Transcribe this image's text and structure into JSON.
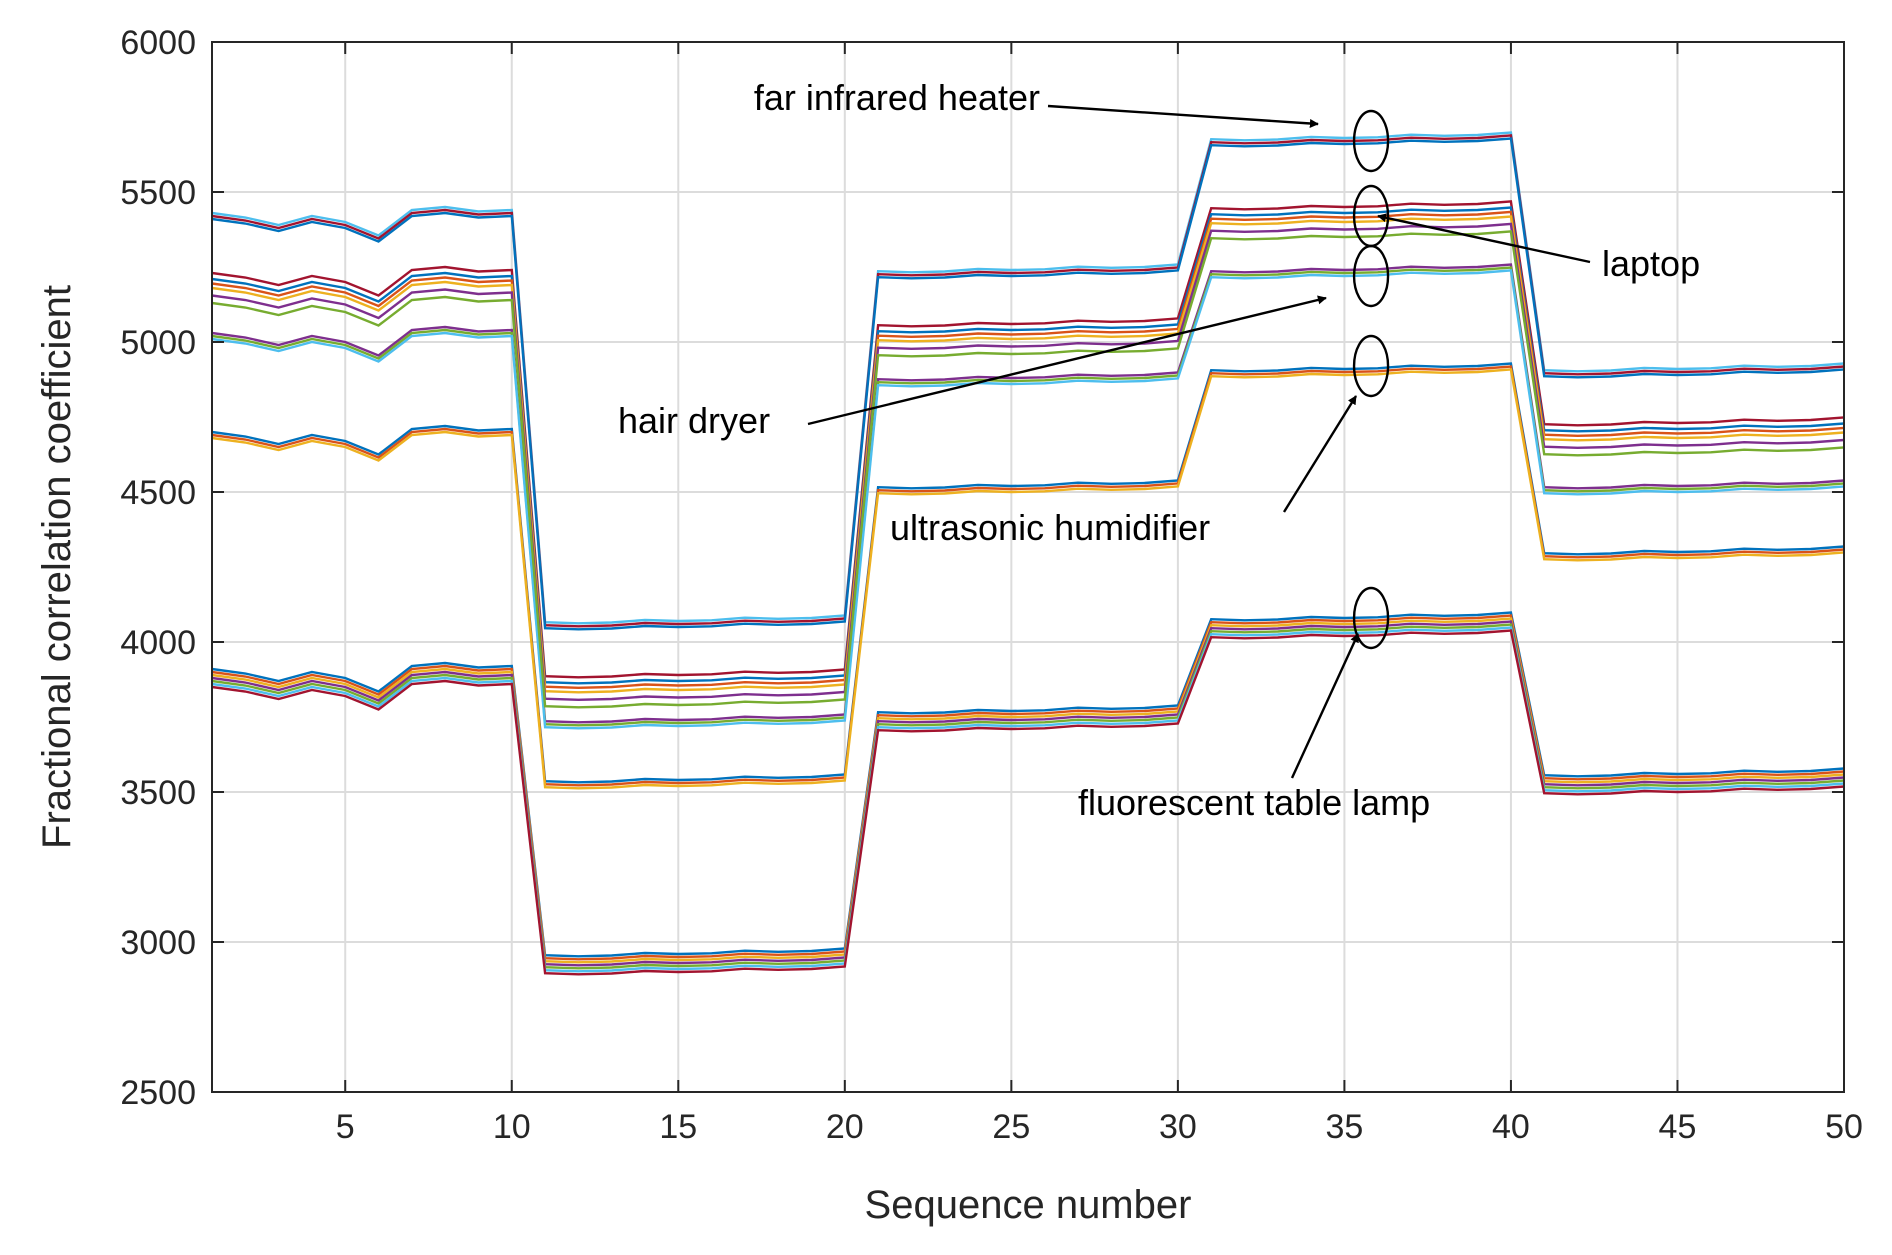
{
  "chart_data": {
    "type": "line",
    "title": "",
    "xlabel": "Sequence number",
    "ylabel": "Fractional correlation coefficient",
    "xlim": [
      1,
      50
    ],
    "ylim": [
      2500,
      6000
    ],
    "xticks": [
      5,
      10,
      15,
      20,
      25,
      30,
      35,
      40,
      45,
      50
    ],
    "yticks": [
      2500,
      3000,
      3500,
      4000,
      4500,
      5000,
      5500,
      6000
    ],
    "grid": true,
    "wiggle": [
      0,
      -15,
      -40,
      -10,
      -30,
      -75,
      10,
      20,
      5,
      10
    ],
    "series_colors": [
      "#0072BD",
      "#D95319",
      "#EDB120",
      "#7E2F8E",
      "#77AC30",
      "#4DBEEE",
      "#A2142F"
    ],
    "appliances": [
      {
        "name": "fluorescent table lamp",
        "segments": [
          3900,
          2940,
          3750,
          4060,
          3540
        ],
        "offsets": [
          10,
          0,
          -10,
          -20,
          -30,
          -40,
          -50
        ]
      },
      {
        "name": "ultrasonic humidifier",
        "segments_a": [
          4700,
          3530,
          4510,
          4900,
          4290
        ],
        "segments_b": [
          5030,
          3730,
          4870,
          5230,
          4510
        ],
        "offsets": [
          0,
          -10,
          -20
        ]
      },
      {
        "name": "laptop",
        "segments": [
          5210,
          3860,
          5030,
          5420,
          4700
        ],
        "offsets": [
          20,
          0,
          -15,
          -30,
          -55,
          -80
        ]
      },
      {
        "name": "far infrared heater",
        "segments": [
          5430,
          4060,
          5230,
          5670,
          4900
        ],
        "offsets": [
          0,
          -10,
          -20
        ]
      }
    ],
    "annotations": [
      {
        "text": "far infrared heater",
        "ellipse_x": 35.8,
        "ellipse_y": 5670
      },
      {
        "text": "laptop",
        "ellipse_x": 35.8,
        "ellipse_y": 5420
      },
      {
        "text": "hair dryer",
        "ellipse_x": 35.8,
        "ellipse_y": 5220
      },
      {
        "text": "ultrasonic humidifier",
        "ellipse_x": 35.8,
        "ellipse_y": 4920
      },
      {
        "text": "fluorescent table lamp",
        "ellipse_x": 35.8,
        "ellipse_y": 4080
      }
    ]
  }
}
